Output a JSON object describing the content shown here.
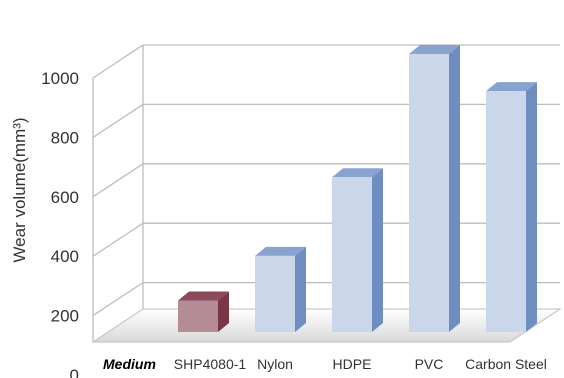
{
  "chart_data": {
    "type": "bar",
    "style": "3d",
    "categories": [
      "SHP4080-1",
      "Nylon",
      "HDPE",
      "PVC",
      "Carbon Steel"
    ],
    "category_prefix": "Medium",
    "values": [
      150,
      300,
      565,
      980,
      855
    ],
    "ylabel": "Wear volume(mm³)",
    "ylim": [
      0,
      1000
    ],
    "yticks": [
      "0",
      "200",
      "400",
      "600",
      "800",
      "1000"
    ],
    "grid": true,
    "legend": "none",
    "colors": {
      "highlight_front": "#B48C96",
      "highlight_top": "#8C4A58",
      "highlight_side": "#7A3646",
      "bar_front": "#CAD6EA",
      "bar_top": "#88A3CF",
      "bar_side": "#6E8DC0",
      "grid": "#BDBDBD",
      "floor": "#E8E8E8"
    }
  }
}
